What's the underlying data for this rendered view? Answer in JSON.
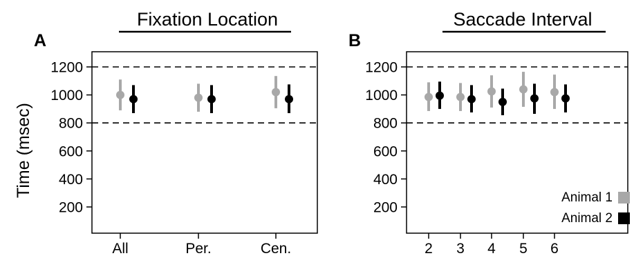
{
  "colors": {
    "animal_1": "#a8a8a8",
    "animal_2": "#000000",
    "reference_line": "#000000"
  },
  "chart_data": [
    {
      "panel": "A",
      "type": "scatter",
      "title": "Fixation Location",
      "ylabel": "Time (msec)",
      "xlabel": "",
      "categories": [
        "All",
        "Per.",
        "Cen."
      ],
      "yticks": [
        200,
        400,
        600,
        800,
        1000,
        1200
      ],
      "ylim": [
        0,
        1300
      ],
      "reference_lines": [
        800,
        1200
      ],
      "grid": false,
      "series": [
        {
          "name": "Animal 1",
          "color": "#a8a8a8",
          "means": [
            1000,
            980,
            1020
          ],
          "lower": [
            890,
            880,
            905
          ],
          "upper": [
            1110,
            1080,
            1135
          ]
        },
        {
          "name": "Animal 2",
          "color": "#000000",
          "means": [
            970,
            970,
            970
          ],
          "lower": [
            870,
            870,
            870
          ],
          "upper": [
            1070,
            1070,
            1075
          ]
        }
      ]
    },
    {
      "panel": "B",
      "type": "scatter",
      "title": "Saccade Interval",
      "ylabel": "",
      "xlabel": "",
      "categories": [
        "2",
        "3",
        "4",
        "5",
        "6"
      ],
      "yticks": [
        200,
        400,
        600,
        800,
        1000,
        1200
      ],
      "ylim": [
        0,
        1300
      ],
      "reference_lines": [
        800,
        1200
      ],
      "grid": false,
      "legend_position": "bottom-right",
      "series": [
        {
          "name": "Animal 1",
          "color": "#a8a8a8",
          "means": [
            985,
            985,
            1025,
            1040,
            1020
          ],
          "lower": [
            885,
            885,
            910,
            915,
            900
          ],
          "upper": [
            1090,
            1085,
            1140,
            1165,
            1145
          ]
        },
        {
          "name": "Animal 2",
          "color": "#000000",
          "means": [
            995,
            970,
            950,
            975,
            975
          ],
          "lower": [
            900,
            875,
            855,
            865,
            875
          ],
          "upper": [
            1095,
            1070,
            1045,
            1080,
            1075
          ]
        }
      ]
    }
  ]
}
